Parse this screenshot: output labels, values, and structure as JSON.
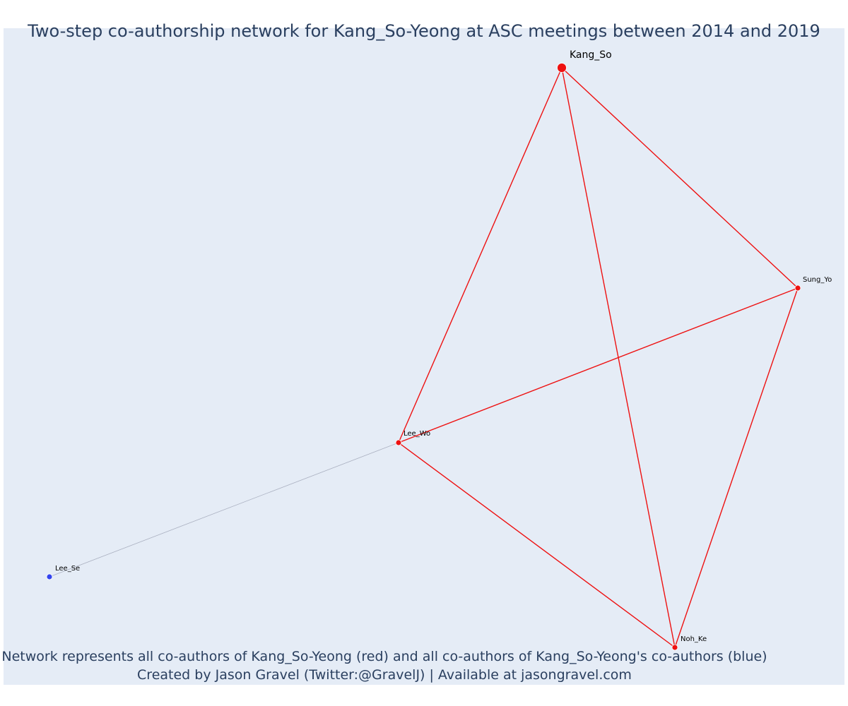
{
  "title": "Two-step co-authorship network for Kang_So-Yeong at ASC meetings between 2014 and 2019",
  "caption": {
    "line1": "Network represents all co-authors of Kang_So-Yeong (red) and all co-authors of Kang_So-Yeong's co-authors (blue)",
    "line2": "Created by Jason Gravel (Twitter:@GravelJ) | Available at jasongravel.com"
  },
  "colors": {
    "background": "#e5ecf6",
    "first_step": "#ee1111",
    "second_step": "#3344ee",
    "second_step_edge": "#aab0c0",
    "text": "#2a3f5f"
  },
  "nodes": [
    {
      "id": "Kang_So",
      "label": "Kang_So",
      "group": "ego"
    },
    {
      "id": "Sung_Yo",
      "label": "Sung_Yo",
      "group": "first_step"
    },
    {
      "id": "Lee_Wo",
      "label": "Lee_Wo",
      "group": "first_step"
    },
    {
      "id": "Noh_Ke",
      "label": "Noh_Ke",
      "group": "first_step"
    },
    {
      "id": "Lee_Se",
      "label": "Lee_Se",
      "group": "second_step"
    }
  ],
  "edges": [
    {
      "source": "Kang_So",
      "target": "Lee_Wo",
      "group": "first_step"
    },
    {
      "source": "Kang_So",
      "target": "Sung_Yo",
      "group": "first_step"
    },
    {
      "source": "Kang_So",
      "target": "Noh_Ke",
      "group": "first_step"
    },
    {
      "source": "Lee_Wo",
      "target": "Sung_Yo",
      "group": "first_step"
    },
    {
      "source": "Lee_Wo",
      "target": "Noh_Ke",
      "group": "first_step"
    },
    {
      "source": "Sung_Yo",
      "target": "Noh_Ke",
      "group": "first_step"
    },
    {
      "source": "Lee_Wo",
      "target": "Lee_Se",
      "group": "second_step"
    }
  ]
}
